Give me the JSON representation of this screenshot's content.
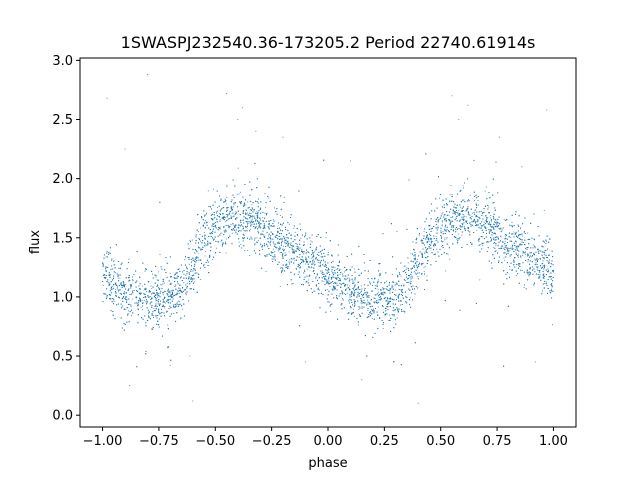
{
  "chart_data": {
    "type": "scatter",
    "title": "1SWASPJ232540.36-173205.2 Period 22740.61914s",
    "xlabel": "phase",
    "ylabel": "flux",
    "xlim": [
      -1.1,
      1.1
    ],
    "ylim": [
      -0.1,
      3.02
    ],
    "grid": false,
    "legend": "none",
    "x_ticks": [
      "−1.00",
      "−0.75",
      "−0.50",
      "−0.25",
      "0.00",
      "0.25",
      "0.50",
      "0.75",
      "1.00"
    ],
    "x_tick_values": [
      -1.0,
      -0.75,
      -0.5,
      -0.25,
      0.0,
      0.25,
      0.5,
      0.75,
      1.0
    ],
    "y_ticks": [
      "0.0",
      "0.5",
      "1.0",
      "1.5",
      "2.0",
      "2.5",
      "3.0"
    ],
    "y_tick_values": [
      0.0,
      0.5,
      1.0,
      1.5,
      2.0,
      2.5,
      3.0
    ],
    "point_color": "#1f77b4",
    "phase_range": [
      -1.0,
      1.0
    ],
    "light_curve": {
      "phase": [
        0.0,
        0.05,
        0.1,
        0.15,
        0.2,
        0.25,
        0.3,
        0.35,
        0.4,
        0.45,
        0.5,
        0.55,
        0.6,
        0.65,
        0.7,
        0.75,
        0.8,
        0.85,
        0.9,
        0.95,
        1.0
      ],
      "flux": [
        1.2,
        1.1,
        1.03,
        1.0,
        0.98,
        0.98,
        1.0,
        1.08,
        1.3,
        1.5,
        1.6,
        1.65,
        1.67,
        1.66,
        1.6,
        1.52,
        1.45,
        1.38,
        1.32,
        1.26,
        1.2
      ],
      "scatter": 0.12
    },
    "outliers": [
      {
        "x": -0.98,
        "y": 2.68
      },
      {
        "x": -0.9,
        "y": 2.25
      },
      {
        "x": -0.88,
        "y": 0.25
      },
      {
        "x": -0.8,
        "y": 2.88
      },
      {
        "x": -0.7,
        "y": 0.42
      },
      {
        "x": -0.6,
        "y": 0.12
      },
      {
        "x": -0.45,
        "y": 2.72
      },
      {
        "x": -0.4,
        "y": 2.5
      },
      {
        "x": -0.38,
        "y": 2.6
      },
      {
        "x": -0.32,
        "y": 2.4
      },
      {
        "x": -0.2,
        "y": 2.35
      },
      {
        "x": -0.1,
        "y": 0.45
      },
      {
        "x": 0.1,
        "y": 2.15
      },
      {
        "x": 0.15,
        "y": 0.3
      },
      {
        "x": 0.4,
        "y": 0.1
      },
      {
        "x": 0.55,
        "y": 2.7
      },
      {
        "x": 0.58,
        "y": 2.5
      },
      {
        "x": 0.62,
        "y": 2.62
      },
      {
        "x": 0.76,
        "y": 2.35
      },
      {
        "x": 0.86,
        "y": 2.1
      },
      {
        "x": 0.92,
        "y": 0.45
      },
      {
        "x": 0.97,
        "y": 2.58
      }
    ]
  }
}
